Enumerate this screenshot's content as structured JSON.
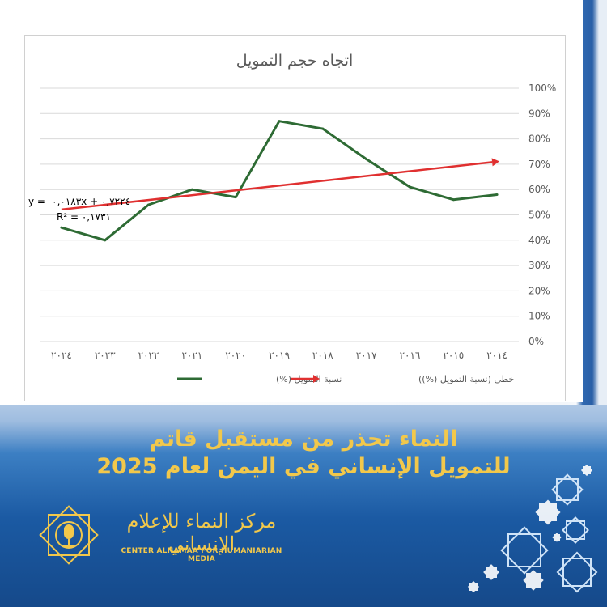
{
  "chart_data": {
    "type": "line",
    "title": "اتجاه حجم التمويل",
    "categories": [
      "٢٠٢٤",
      "٢٠٢٣",
      "٢٠٢٢",
      "٢٠٢١",
      "٢٠٢٠",
      "٢٠١٩",
      "٢٠١٨",
      "٢٠١٧",
      "٢٠١٦",
      "٢٠١٥",
      "٢٠١٤"
    ],
    "series": [
      {
        "name": "نسبة التمويل (%)",
        "values": [
          45,
          40,
          54,
          60,
          57,
          87,
          84,
          72,
          61,
          56,
          58
        ],
        "color": "#2e6b34"
      }
    ],
    "trendline": {
      "name": "خطي (نسبة التمويل (%))",
      "start": 52.1,
      "end": 70.8,
      "color": "#e03030",
      "equation": "y = -٠,٠١٨٣x + ٠,٧٢٢٤",
      "r2": "R² = ٠,١٧٣١"
    },
    "y_ticks": [
      "0%",
      "10%",
      "20%",
      "30%",
      "40%",
      "50%",
      "60%",
      "70%",
      "80%",
      "90%",
      "100%"
    ],
    "ylim": [
      0,
      100
    ],
    "grid": true,
    "y_axis_side": "right",
    "legend_position": "bottom",
    "xlabel": "",
    "ylabel": ""
  },
  "headline": {
    "line1": "النماء تحذر من مستقبل قاتم",
    "line2": "للتمويل الإنساني في اليمن لعام 2025"
  },
  "brand": {
    "name_ar": "مركز النماء للإعلام الإنساني",
    "name_en": "CENTER ALNAMAA FOR HUMANIARIAN MEDIA"
  },
  "colors": {
    "accent": "#f2c84b",
    "background_blue": "#1b5aa3"
  }
}
